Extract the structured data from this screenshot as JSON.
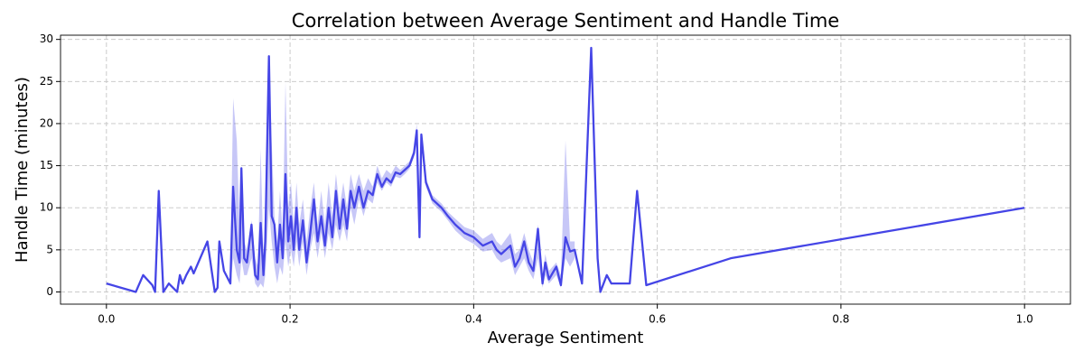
{
  "chart_data": {
    "type": "line",
    "title": "Correlation between Average Sentiment and Handle Time",
    "x_label": "Average Sentiment",
    "y_label": "Handle Time (minutes)",
    "color": "#4545e6",
    "grid": true,
    "xlim": [
      -0.05,
      1.05
    ],
    "xticks": [
      {
        "value": 0,
        "label": "0.0"
      },
      0.2,
      0.4,
      0.6,
      0.8,
      {
        "value": 1,
        "label": "1.0"
      }
    ],
    "ylim": [
      -1.45,
      30.5
    ],
    "yticks": [
      0,
      5,
      10,
      15,
      20,
      25,
      30
    ],
    "x": [
      0,
      0.032,
      0.04,
      0.05,
      0.053,
      0.057,
      0.062,
      0.068,
      0.077,
      0.08,
      0.083,
      0.087,
      0.092,
      0.095,
      0.11,
      0.118,
      0.121,
      0.123,
      0.128,
      0.135,
      0.138,
      0.142,
      0.145,
      0.147,
      0.15,
      0.153,
      0.158,
      0.162,
      0.165,
      0.168,
      0.171,
      0.173,
      0.177,
      0.18,
      0.183,
      0.186,
      0.189,
      0.192,
      0.195,
      0.198,
      0.201,
      0.204,
      0.207,
      0.21,
      0.214,
      0.218,
      0.222,
      0.226,
      0.23,
      0.234,
      0.238,
      0.242,
      0.246,
      0.25,
      0.254,
      0.258,
      0.262,
      0.266,
      0.27,
      0.275,
      0.28,
      0.285,
      0.29,
      0.295,
      0.3,
      0.305,
      0.31,
      0.315,
      0.32,
      0.325,
      0.33,
      0.335,
      0.338,
      0.341,
      0.343,
      0.348,
      0.355,
      0.365,
      0.372,
      0.38,
      0.39,
      0.4,
      0.41,
      0.42,
      0.425,
      0.43,
      0.44,
      0.445,
      0.45,
      0.455,
      0.46,
      0.465,
      0.47,
      0.475,
      0.478,
      0.482,
      0.49,
      0.495,
      0.5,
      0.505,
      0.51,
      0.518,
      0.528,
      0.535,
      0.538,
      0.545,
      0.55,
      0.57,
      0.578,
      0.588,
      0.68,
      1.0
    ],
    "values": [
      1,
      0,
      2,
      0.8,
      0,
      12,
      0,
      1,
      0,
      2,
      1,
      2,
      3,
      2.2,
      6,
      0,
      0.5,
      6,
      2.5,
      1,
      12.5,
      5,
      3.5,
      14.7,
      4,
      3.5,
      8,
      2,
      1.5,
      8.2,
      2,
      6,
      28,
      9,
      8,
      3.5,
      8,
      4,
      14,
      6,
      9,
      5,
      10,
      5,
      8.5,
      3.5,
      7,
      11,
      6,
      9,
      5.5,
      10,
      6.5,
      12,
      7.5,
      11,
      7.5,
      12,
      10,
      12.5,
      10,
      12,
      11.5,
      14,
      12.5,
      13.5,
      13,
      14.2,
      14,
      14.5,
      15,
      16.5,
      19.2,
      6.5,
      18.7,
      13,
      11,
      10,
      9,
      8,
      7,
      6.5,
      5.5,
      6,
      5,
      4.5,
      5.5,
      3,
      4,
      6,
      3.5,
      2.5,
      7.5,
      1,
      3.5,
      1.5,
      3,
      0.8,
      6.5,
      4.8,
      5,
      1,
      29,
      4,
      0,
      2,
      1,
      1,
      12,
      0.8,
      4,
      10
    ],
    "band_low": [
      null,
      null,
      null,
      null,
      null,
      null,
      null,
      null,
      null,
      null,
      null,
      null,
      null,
      null,
      null,
      null,
      null,
      null,
      null,
      0.5,
      4,
      2,
      1,
      4,
      2,
      2,
      4,
      1,
      0.5,
      1,
      0.5,
      2,
      10,
      6,
      3,
      1,
      3,
      2,
      6,
      3,
      5,
      3,
      6,
      3,
      6,
      2,
      5,
      7,
      4,
      7,
      4,
      7,
      5,
      8,
      6,
      8,
      6,
      10,
      8,
      11,
      9,
      11,
      10.5,
      13,
      12,
      13,
      12.5,
      13.7,
      13.5,
      14,
      14.6,
      16,
      18,
      6,
      18,
      12.5,
      10.5,
      9.5,
      8.5,
      7.3,
      6.3,
      5.7,
      4.8,
      5,
      4,
      3.5,
      4,
      2,
      3,
      4,
      2.5,
      1.5,
      4,
      0.5,
      2,
      1,
      2,
      0.5,
      4,
      3,
      4,
      null,
      null,
      null,
      null,
      null,
      null,
      null,
      null,
      null,
      null,
      null
    ],
    "band_high": [
      null,
      null,
      null,
      null,
      null,
      null,
      null,
      null,
      null,
      null,
      null,
      null,
      null,
      null,
      null,
      null,
      null,
      null,
      null,
      2,
      23,
      18,
      8,
      15,
      6,
      5,
      8.5,
      4,
      3,
      17,
      4,
      10,
      28,
      18,
      9,
      6,
      12,
      7,
      25,
      10,
      13,
      8,
      13,
      8,
      11,
      6,
      10,
      13,
      8,
      12,
      8,
      13,
      9,
      14,
      10,
      13,
      10,
      14,
      12,
      14,
      12,
      13.5,
      12.5,
      15,
      13.5,
      14.5,
      14,
      15,
      14.5,
      15,
      15.5,
      17,
      20,
      7,
      19,
      13.5,
      11.5,
      10.5,
      9.5,
      8.7,
      7.7,
      7.3,
      6.3,
      7,
      6,
      5.5,
      7,
      4.5,
      5,
      7,
      5,
      3.5,
      8,
      2,
      4.5,
      2.5,
      3.5,
      2,
      18,
      6,
      6,
      null,
      null,
      null,
      null,
      null,
      null,
      null,
      null,
      null,
      null,
      null
    ]
  }
}
